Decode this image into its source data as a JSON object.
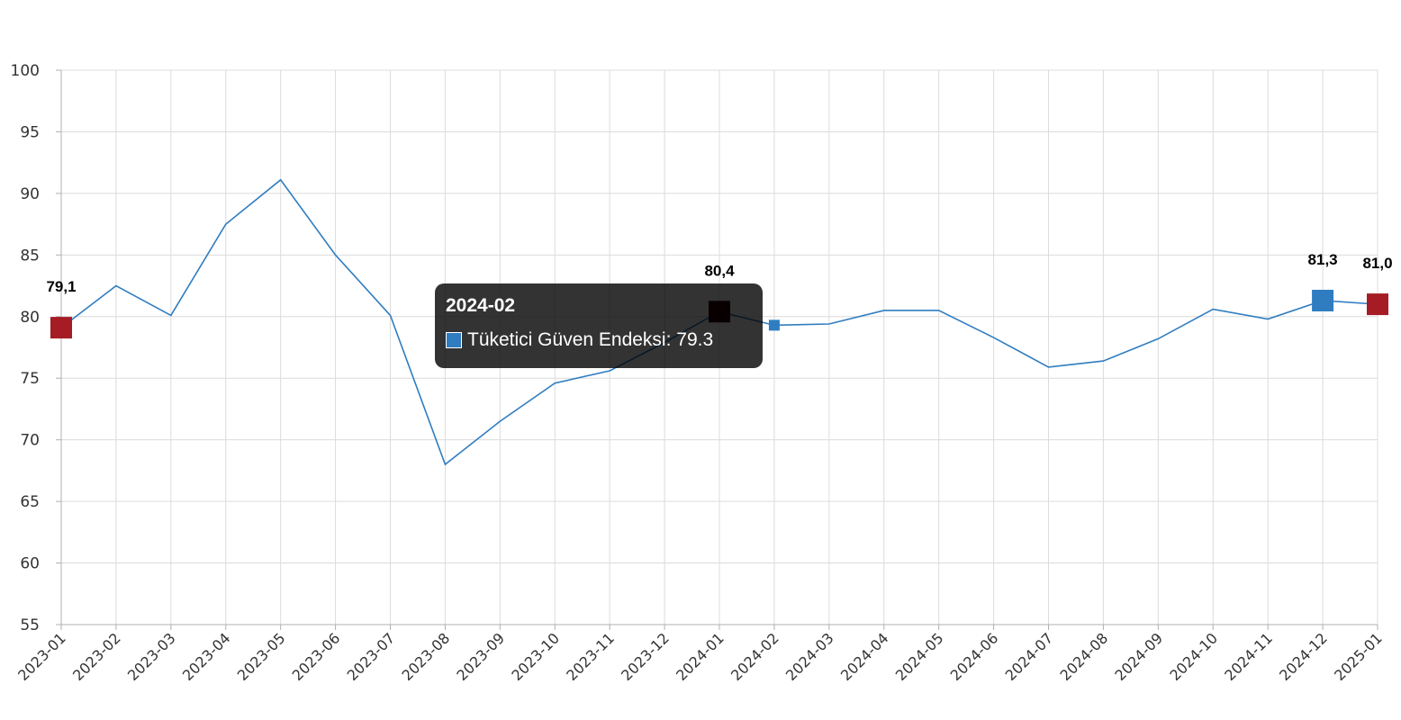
{
  "colors": {
    "line": "#2f7dc0",
    "marker_red": "#a51c24",
    "marker_blue": "#2f7dc0",
    "marker_dark": "#2a0000",
    "grid": "#dcdcdc",
    "axis": "#b0b0b0"
  },
  "chart_data": {
    "type": "line",
    "categories": [
      "2023-01",
      "2023-02",
      "2023-03",
      "2023-04",
      "2023-05",
      "2023-06",
      "2023-07",
      "2023-08",
      "2023-09",
      "2023-10",
      "2023-11",
      "2023-12",
      "2024-01",
      "2024-02",
      "2024-03",
      "2024-04",
      "2024-05",
      "2024-06",
      "2024-07",
      "2024-08",
      "2024-09",
      "2024-10",
      "2024-11",
      "2024-12",
      "2025-01"
    ],
    "series": [
      {
        "name": "Tüketici Güven Endeksi",
        "values": [
          79.1,
          82.5,
          80.1,
          87.5,
          91.1,
          85.0,
          80.1,
          68.0,
          71.5,
          74.6,
          75.6,
          77.9,
          80.4,
          79.3,
          79.4,
          80.5,
          80.5,
          78.3,
          75.9,
          76.4,
          78.2,
          80.6,
          79.8,
          81.3,
          81.0
        ]
      }
    ],
    "ylim": [
      55,
      100
    ],
    "yticks": [
      55,
      60,
      65,
      70,
      75,
      80,
      85,
      90,
      95,
      100
    ],
    "grid": true,
    "highlights": [
      {
        "index": 0,
        "label": "79,1",
        "style": "red"
      },
      {
        "index": 12,
        "label": "80,4",
        "style": "dark"
      },
      {
        "index": 23,
        "label": "81,3",
        "style": "blue"
      },
      {
        "index": 24,
        "label": "81,0",
        "style": "red"
      }
    ],
    "hover_index": 13,
    "tooltip": {
      "title": "2024-02",
      "text": "Tüketici Güven Endeksi: 79.3"
    }
  }
}
